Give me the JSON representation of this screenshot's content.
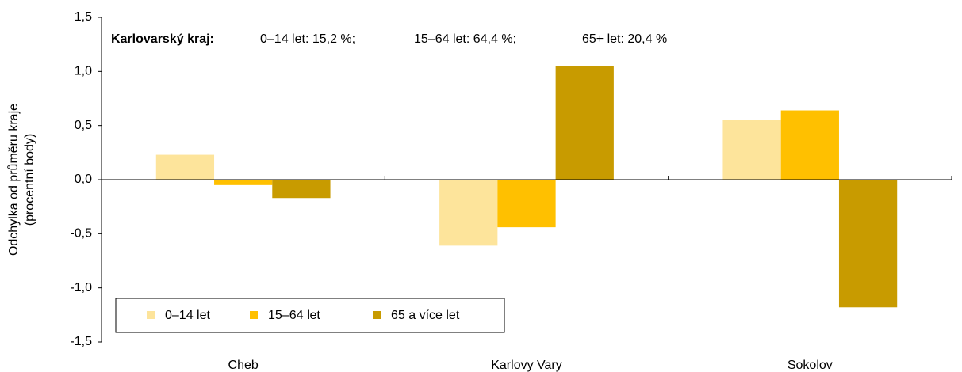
{
  "chart_data": {
    "type": "bar",
    "y_label": [
      "Odchylka od průměru kraje",
      "(procentní body)"
    ],
    "annotation": {
      "label": "Karlovarský kraj:",
      "items": [
        "0–14 let: 15,2 %;",
        "15–64 let: 64,4 %;",
        "65+ let: 20,4 %"
      ]
    },
    "categories": [
      "Cheb",
      "Karlovy Vary",
      "Sokolov"
    ],
    "series": [
      {
        "name": "0–14 let",
        "color": "#fde49b",
        "values": [
          0.23,
          -0.61,
          0.55
        ]
      },
      {
        "name": "15–64 let",
        "color": "#ffc000",
        "values": [
          -0.05,
          -0.44,
          0.64
        ]
      },
      {
        "name": "65 a více let",
        "color": "#c89b00",
        "values": [
          -0.17,
          1.05,
          -1.18
        ]
      }
    ],
    "ylim": [
      -1.5,
      1.5
    ],
    "yticks": [
      {
        "value": -1.5,
        "label": "-1,5"
      },
      {
        "value": -1,
        "label": "-1,0"
      },
      {
        "value": -0.5,
        "label": "-0,5"
      },
      {
        "value": 0,
        "label": "0,0"
      },
      {
        "value": 0.5,
        "label": "0,5"
      },
      {
        "value": 1,
        "label": "1,0"
      },
      {
        "value": 1.5,
        "label": "1,5"
      }
    ],
    "legend": "bottom-left"
  }
}
